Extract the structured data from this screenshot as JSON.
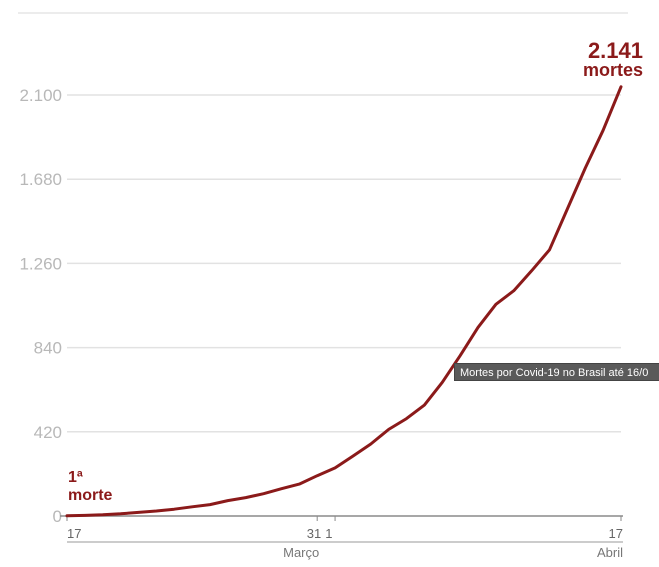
{
  "chart_data": {
    "type": "line",
    "title": "",
    "xlabel": "",
    "ylabel": "",
    "ylim": [
      0,
      2141
    ],
    "y_ticks": [
      0,
      420,
      840,
      1260,
      1680,
      2100
    ],
    "y_tick_labels": [
      "0",
      "420",
      "840",
      "1.260",
      "1.680",
      "2.100"
    ],
    "x_tick_labels": [
      {
        "label": "17",
        "index": 0
      },
      {
        "label": "31",
        "index": 14
      },
      {
        "label": "1",
        "index": 15
      },
      {
        "label": "17",
        "index": 31
      }
    ],
    "months": [
      {
        "label": "Março",
        "index": 14
      },
      {
        "label": "Abril",
        "index": 31
      }
    ],
    "grid": true,
    "series": [
      {
        "color": "#8b1a1a",
        "x_dates": [
          "17/03",
          "18/03",
          "19/03",
          "20/03",
          "21/03",
          "22/03",
          "23/03",
          "24/03",
          "25/03",
          "26/03",
          "27/03",
          "28/03",
          "29/03",
          "30/03",
          "31/03",
          "01/04",
          "02/04",
          "03/04",
          "04/04",
          "05/04",
          "06/04",
          "07/04",
          "08/04",
          "09/04",
          "10/04",
          "11/04",
          "12/04",
          "13/04",
          "14/04",
          "15/04",
          "16/04",
          "17/04"
        ],
        "values": [
          1,
          3,
          6,
          11,
          18,
          25,
          34,
          46,
          57,
          77,
          92,
          111,
          136,
          159,
          201,
          240,
          299,
          359,
          432,
          486,
          553,
          667,
          800,
          941,
          1056,
          1124,
          1223,
          1328,
          1532,
          1736,
          1924,
          2141
        ]
      }
    ],
    "annotations": {
      "start_line1": "1ª",
      "start_line2": "morte",
      "end_value": "2.141",
      "end_label": "mortes"
    },
    "tooltip": "Mortes por Covid-19 no Brasil até 16/0"
  },
  "colors": {
    "line": "#8b1a1a",
    "grid": "#e2e2e2",
    "axis": "#8a8a8a"
  }
}
